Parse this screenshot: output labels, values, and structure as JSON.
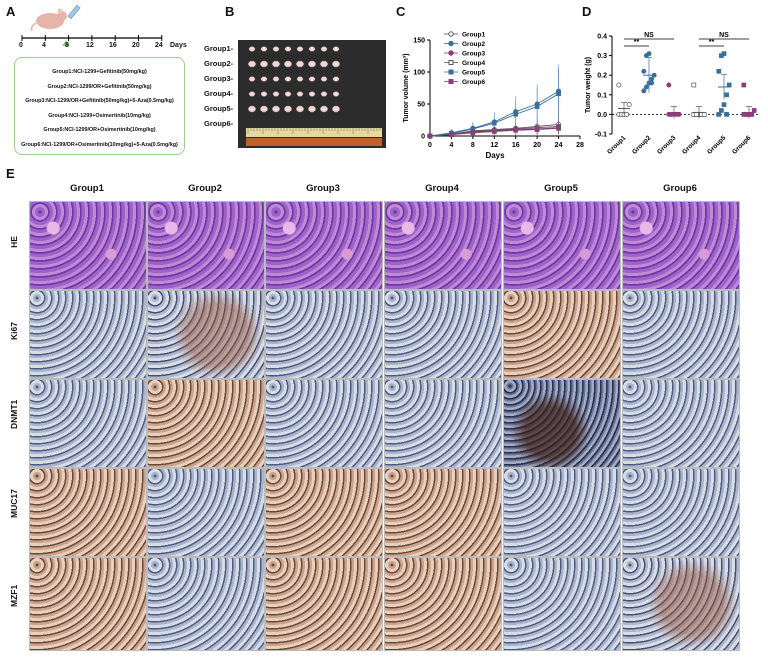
{
  "panels": {
    "A": "A",
    "B": "B",
    "C": "C",
    "D": "D",
    "E": "E"
  },
  "panelA": {
    "ticks": [
      "0",
      "4",
      "8",
      "12",
      "16",
      "20",
      "24"
    ],
    "unit": "Days",
    "groups": [
      "Group1:NCI-1299+Gefitinib(50mg/kg)",
      "Group2:NCI-1299/OR+Gefitinib(50mg/kg)",
      "Group3:NCI-1299/OR+Gefitinib(50mg/kg)+5-Aza(0.5mg/kg)",
      "Group4:NCI-1299+Osimertinib(10mg/kg)",
      "Group5:NCI-1299/OR+Osimertinib(10mg/kg)",
      "Group6:NCI-1299/OR+Osimertinib(10mg/kg)+5-Aza(0.5mg/kg)"
    ]
  },
  "panelB": {
    "labels": [
      "Group1-",
      "Group2-",
      "Group3-",
      "Group4-",
      "Group5-",
      "Group6-"
    ]
  },
  "chart_data": [
    {
      "type": "line",
      "ylabel": "Tumor volume (mm³)",
      "xlabel": "Days",
      "x": [
        0,
        4,
        8,
        12,
        16,
        20,
        24
      ],
      "xticks": [
        "0",
        "4",
        "8",
        "12",
        "16",
        "20",
        "24",
        "28"
      ],
      "yticks": [
        "0",
        "50",
        "100",
        "150"
      ],
      "ylim": [
        0,
        150
      ],
      "xlim": [
        0,
        28
      ],
      "series": [
        {
          "name": "Group1",
          "marker": "open-circle",
          "color": "#555555",
          "values": [
            0,
            3,
            8,
            10,
            12,
            15,
            18
          ]
        },
        {
          "name": "Group2",
          "marker": "filled-circle",
          "color": "#3a6f9a",
          "values": [
            0,
            5,
            12,
            22,
            38,
            50,
            70
          ]
        },
        {
          "name": "Group3",
          "marker": "filled-circle",
          "color": "#8a3f7a",
          "values": [
            0,
            3,
            7,
            9,
            11,
            13,
            15
          ]
        },
        {
          "name": "Group4",
          "marker": "open-square",
          "color": "#555555",
          "values": [
            0,
            2,
            6,
            8,
            10,
            11,
            13
          ]
        },
        {
          "name": "Group5",
          "marker": "filled-square",
          "color": "#3a6f9a",
          "values": [
            0,
            4,
            11,
            20,
            34,
            46,
            66
          ]
        },
        {
          "name": "Group6",
          "marker": "filled-square",
          "color": "#8a3f7a",
          "values": [
            0,
            2,
            5,
            7,
            9,
            10,
            12
          ]
        }
      ]
    },
    {
      "type": "scatter",
      "ylabel": "Tumor weight (g)",
      "categories": [
        "Group1",
        "Group2",
        "Group3",
        "Group4",
        "Group5",
        "Group6"
      ],
      "yticks": [
        "-0.1",
        "0.0",
        "0.1",
        "0.2",
        "0.3",
        "0.4"
      ],
      "ylim": [
        -0.1,
        0.4
      ],
      "means": [
        0.03,
        0.2,
        0.01,
        0.01,
        0.14,
        0.01
      ],
      "points": [
        [
          0.0,
          0.0,
          0.0,
          0.0,
          0.05,
          0.15,
          0.0,
          0.0,
          0.0
        ],
        [
          0.12,
          0.14,
          0.16,
          0.18,
          0.2,
          0.22,
          0.3,
          0.31,
          0.16
        ],
        [
          0.0,
          0.0,
          0.0,
          0.0,
          0.0,
          0.15,
          0.0
        ],
        [
          0.0,
          0.0,
          0.0,
          0.0,
          0.0,
          0.15,
          0.0
        ],
        [
          0.0,
          0.02,
          0.05,
          0.1,
          0.15,
          0.22,
          0.3,
          0.31,
          0.0
        ],
        [
          0.0,
          0.0,
          0.0,
          0.0,
          0.02,
          0.15,
          0.0
        ]
      ],
      "colors": [
        "#555555",
        "#3a6f9a",
        "#8a3f7a",
        "#555555",
        "#3a6f9a",
        "#8a3f7a"
      ],
      "annotations": [
        {
          "text": "NS",
          "from": 0,
          "to": 2
        },
        {
          "text": "**",
          "from": 0,
          "to": 1
        },
        {
          "text": "NS",
          "from": 3,
          "to": 5
        },
        {
          "text": "**",
          "from": 3,
          "to": 4
        }
      ]
    }
  ],
  "panelE": {
    "columns": [
      "Group1",
      "Group2",
      "Group3",
      "Group4",
      "Group5",
      "Group6"
    ],
    "rows": [
      "HE",
      "Ki67",
      "DNMT1",
      "MUC17",
      "MZF1"
    ]
  }
}
